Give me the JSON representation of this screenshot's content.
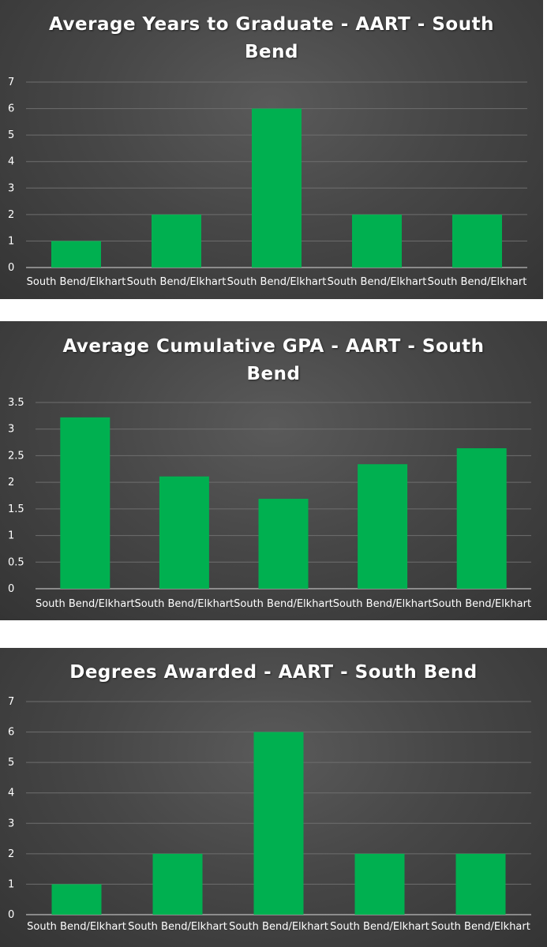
{
  "chart_data": [
    {
      "type": "bar",
      "title": "Average Years to Graduate - AART - South Bend",
      "categories": [
        "South Bend/Elkhart",
        "South Bend/Elkhart",
        "South Bend/Elkhart",
        "South Bend/Elkhart",
        "South Bend/Elkhart"
      ],
      "values": [
        1,
        2,
        6,
        2,
        2
      ],
      "ylim": [
        0,
        7
      ],
      "yticks": [
        "0",
        "1",
        "2",
        "3",
        "4",
        "5",
        "6",
        "7"
      ],
      "grid": true,
      "xlabel": "",
      "ylabel": "",
      "bar_color": "#00b050"
    },
    {
      "type": "bar",
      "title": "Average Cumulative GPA - AART - South Bend",
      "categories": [
        "South Bend/Elkhart",
        "South Bend/Elkhart",
        "South Bend/Elkhart",
        "South Bend/Elkhart",
        "South Bend/Elkhart"
      ],
      "values": [
        3.22,
        2.11,
        1.69,
        2.34,
        2.64
      ],
      "ylim": [
        0,
        3.5
      ],
      "yticks": [
        "0",
        "0.5",
        "1",
        "1.5",
        "2",
        "2.5",
        "3",
        "3.5"
      ],
      "grid": true,
      "xlabel": "",
      "ylabel": "",
      "bar_color": "#00b050"
    },
    {
      "type": "bar",
      "title": "Degrees Awarded - AART - South Bend",
      "categories": [
        "South Bend/Elkhart",
        "South Bend/Elkhart",
        "South Bend/Elkhart",
        "South Bend/Elkhart",
        "South Bend/Elkhart"
      ],
      "values": [
        1,
        2,
        6,
        2,
        2
      ],
      "ylim": [
        0,
        7
      ],
      "yticks": [
        "0",
        "1",
        "2",
        "3",
        "4",
        "5",
        "6",
        "7"
      ],
      "grid": true,
      "xlabel": "",
      "ylabel": "",
      "bar_color": "#00b050"
    }
  ]
}
